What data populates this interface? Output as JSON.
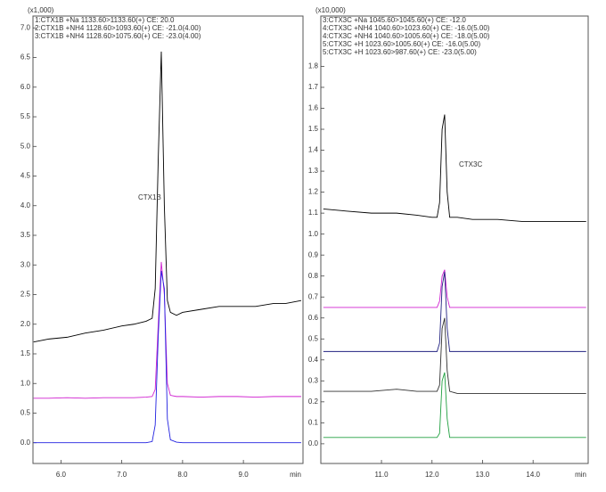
{
  "chart_data": [
    {
      "type": "line",
      "y_scale_label": "(x1,000)",
      "xlabel": "min",
      "annotation": "CTX1B",
      "xlim": [
        5.54,
        9.98
      ],
      "xticks": [
        {
          "value": 6,
          "label": "6.0"
        },
        {
          "value": 7,
          "label": "7.0"
        },
        {
          "value": 8,
          "label": "8.0"
        },
        {
          "value": 9,
          "label": "9.0"
        }
      ],
      "ylim": [
        -0.35,
        7.2
      ],
      "yticks": [
        {
          "value": 0,
          "label": "0.0"
        },
        0.5,
        {
          "value": 1,
          "label": "1.0"
        },
        1.5,
        {
          "value": 2,
          "label": "2.0"
        },
        2.5,
        {
          "value": 3,
          "label": "3.0"
        },
        3.5,
        {
          "value": 4,
          "label": "4.0"
        },
        4.5,
        {
          "value": 5,
          "label": "5.0"
        },
        5.5,
        {
          "value": 6,
          "label": "6.0"
        },
        6.5,
        {
          "value": 7,
          "label": "7.0"
        }
      ],
      "x": [
        5.55,
        5.8,
        6.1,
        6.4,
        6.7,
        7.0,
        7.2,
        7.4,
        7.5,
        7.55,
        7.6,
        7.65,
        7.7,
        7.75,
        7.8,
        7.9,
        8.0,
        8.3,
        8.6,
        8.9,
        9.2,
        9.5,
        9.7,
        9.95
      ],
      "series": [
        {
          "name": "1:CTX1B +Na 1133.60>1133.60(+) CE: 20.0",
          "color": "#000000",
          "values": [
            1.7,
            1.75,
            1.78,
            1.85,
            1.9,
            1.97,
            2.0,
            2.05,
            2.1,
            2.6,
            4.8,
            6.6,
            4.0,
            2.4,
            2.2,
            2.15,
            2.2,
            2.25,
            2.3,
            2.3,
            2.3,
            2.35,
            2.35,
            2.4
          ]
        },
        {
          "name": "2:CTX1B +NH4 1128.60>1093.60(+) CE: -21.0(4.00)",
          "color": "#d020d0",
          "values": [
            0.75,
            0.75,
            0.76,
            0.75,
            0.76,
            0.76,
            0.76,
            0.77,
            0.78,
            0.9,
            2.0,
            3.05,
            2.5,
            1.0,
            0.8,
            0.78,
            0.78,
            0.77,
            0.78,
            0.78,
            0.77,
            0.78,
            0.78,
            0.78
          ]
        },
        {
          "name": "3:CTX1B +NH4 1128.60>1075.60(+) CE: -23.0(4.00)",
          "color": "#2020e0",
          "values": [
            0,
            0,
            0,
            0,
            0,
            0,
            0,
            0,
            0.02,
            0.3,
            1.8,
            2.9,
            2.6,
            0.4,
            0.05,
            0.01,
            0,
            0,
            0,
            0,
            0,
            0,
            0,
            0
          ]
        }
      ]
    },
    {
      "type": "line",
      "y_scale_label": "(x10,000)",
      "xlabel": "min",
      "annotation": "CTX3C",
      "xlim": [
        9.8,
        15.09
      ],
      "xticks": [
        {
          "value": 11,
          "label": "11.0"
        },
        {
          "value": 12,
          "label": "12.0"
        },
        {
          "value": 13,
          "label": "13.0"
        },
        {
          "value": 14,
          "label": "14.0"
        }
      ],
      "ylim": [
        -0.094,
        2.04
      ],
      "yticks": [
        {
          "value": 0,
          "label": "0.0"
        },
        0.1,
        0.2,
        0.3,
        0.4,
        0.5,
        0.6,
        0.7,
        0.8,
        0.9,
        {
          "value": 1,
          "label": "1.0"
        },
        1.1,
        1.2,
        1.3,
        1.4,
        1.5,
        1.6,
        1.7,
        1.8
      ],
      "x": [
        9.85,
        10.3,
        10.8,
        11.3,
        11.7,
        12.0,
        12.1,
        12.15,
        12.2,
        12.25,
        12.3,
        12.35,
        12.5,
        12.8,
        13.3,
        13.8,
        14.3,
        14.7,
        15.05
      ],
      "series": [
        {
          "name": "3:CTX3C +Na 1045.60>1045.60(+) CE: -12.0",
          "color": "#000000",
          "values": [
            1.12,
            1.11,
            1.1,
            1.1,
            1.09,
            1.08,
            1.08,
            1.15,
            1.5,
            1.57,
            1.2,
            1.08,
            1.08,
            1.07,
            1.07,
            1.06,
            1.06,
            1.06,
            1.06
          ]
        },
        {
          "name": "4:CTX3C +NH4 1040.60>1023.60(+) CE: -16.0(5.00)",
          "color": "#d020d0",
          "values": [
            0.65,
            0.65,
            0.65,
            0.65,
            0.65,
            0.65,
            0.65,
            0.68,
            0.8,
            0.83,
            0.7,
            0.65,
            0.65,
            0.65,
            0.65,
            0.65,
            0.65,
            0.65,
            0.65
          ]
        },
        {
          "name": "4:CTX3C +NH4 1040.60>1005.60(+) CE: -18.0(5.00)",
          "color": "#202080",
          "values": [
            0.44,
            0.44,
            0.44,
            0.44,
            0.44,
            0.44,
            0.44,
            0.48,
            0.75,
            0.82,
            0.55,
            0.44,
            0.44,
            0.44,
            0.44,
            0.44,
            0.44,
            0.44,
            0.44
          ]
        },
        {
          "name": "5:CTX3C +H 1023.60>1005.60(+) CE: -16.0(5.00)",
          "color": "#303030",
          "values": [
            0.25,
            0.25,
            0.25,
            0.26,
            0.25,
            0.25,
            0.25,
            0.28,
            0.55,
            0.6,
            0.35,
            0.25,
            0.24,
            0.24,
            0.24,
            0.24,
            0.24,
            0.24,
            0.24
          ]
        },
        {
          "name": "5:CTX3C +H 1023.60>987.60(+) CE: -23.0(5.00)",
          "color": "#20a040",
          "values": [
            0.03,
            0.03,
            0.03,
            0.03,
            0.03,
            0.03,
            0.03,
            0.05,
            0.3,
            0.34,
            0.12,
            0.03,
            0.03,
            0.03,
            0.03,
            0.03,
            0.03,
            0.03,
            0.03
          ]
        }
      ]
    }
  ]
}
